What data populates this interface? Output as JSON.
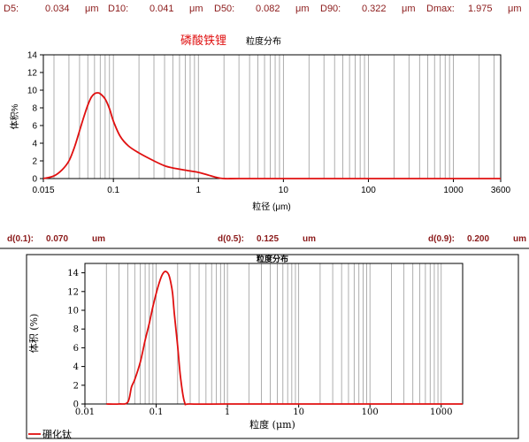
{
  "top_stats": [
    {
      "label": "D5:",
      "value": "0.034",
      "unit": "μm"
    },
    {
      "label": "D10:",
      "value": "0.041",
      "unit": "μm"
    },
    {
      "label": "D50:",
      "value": "0.082",
      "unit": "μm"
    },
    {
      "label": "D90:",
      "value": "0.322",
      "unit": "μm"
    },
    {
      "label": "Dmax:",
      "value": "1.975",
      "unit": "μm"
    }
  ],
  "middle_stats": [
    {
      "label": "d(0.1):",
      "value": "0.070",
      "unit": "um"
    },
    {
      "label": "d(0.5):",
      "value": "0.125",
      "unit": "um"
    },
    {
      "label": "d(0.9):",
      "value": "0.200",
      "unit": "um"
    }
  ],
  "colors": {
    "curve": "#e01010",
    "stats": "#8b1a1a",
    "grid": "#9a9a9a"
  },
  "chart_data": [
    {
      "type": "line",
      "title": "磷酸铁锂",
      "subtitle": "粒度分布",
      "xlabel": "粒径 (μm)",
      "ylabel": "体积%",
      "x_scale": "log",
      "xlim": [
        0.015,
        3600
      ],
      "ylim": [
        0,
        14
      ],
      "x_tick_labels": [
        "0.015",
        "0.1",
        "1",
        "10",
        "100",
        "1000",
        "3600"
      ],
      "x_ticks": [
        0.015,
        0.1,
        1,
        10,
        100,
        1000,
        3600
      ],
      "y_ticks": [
        0,
        2,
        4,
        6,
        8,
        10,
        12,
        14
      ],
      "grid": "vertical log minor lines",
      "series": [
        {
          "x": [
            0.015,
            0.02,
            0.025,
            0.03,
            0.035,
            0.04,
            0.045,
            0.05,
            0.055,
            0.06,
            0.065,
            0.07,
            0.08,
            0.09,
            0.1,
            0.12,
            0.15,
            0.2,
            0.3,
            0.4,
            0.5,
            0.7,
            1,
            1.3,
            1.6,
            1.975,
            3,
            10,
            100,
            1000,
            3600
          ],
          "values": [
            0,
            0.3,
            1.0,
            2.0,
            3.6,
            5.4,
            7.0,
            8.3,
            9.2,
            9.6,
            9.7,
            9.6,
            9.0,
            7.9,
            6.5,
            4.8,
            3.7,
            2.9,
            2.0,
            1.45,
            1.2,
            0.95,
            0.7,
            0.4,
            0.15,
            0,
            0,
            0,
            0,
            0,
            0
          ]
        }
      ]
    },
    {
      "type": "line",
      "title": "粒度分布",
      "xlabel": "粒度 (μm)",
      "ylabel": "体积 (%)",
      "x_scale": "log",
      "xlim": [
        0.01,
        2000
      ],
      "ylim": [
        0,
        15
      ],
      "x_tick_labels": [
        "0.01",
        "0.1",
        "1",
        "10",
        "100",
        "1000"
      ],
      "x_ticks": [
        0.01,
        0.1,
        1,
        10,
        100,
        1000
      ],
      "y_ticks": [
        0,
        2,
        4,
        6,
        8,
        10,
        12,
        14
      ],
      "grid": "vertical log minor lines",
      "legend": "bottom-left",
      "series": [
        {
          "name": "硼化钛",
          "x": [
            0.02,
            0.03,
            0.04,
            0.045,
            0.05,
            0.06,
            0.07,
            0.08,
            0.09,
            0.1,
            0.11,
            0.12,
            0.13,
            0.14,
            0.15,
            0.16,
            0.17,
            0.18,
            0.2,
            0.22,
            0.25,
            0.3,
            1,
            10,
            100,
            1000,
            2000
          ],
          "values": [
            0,
            0,
            0.2,
            1.8,
            2.6,
            4.5,
            6.8,
            8.6,
            10.4,
            11.8,
            12.9,
            13.7,
            14.1,
            14.1,
            13.8,
            13.0,
            11.8,
            9.6,
            6.2,
            2.8,
            0.2,
            0,
            0,
            0,
            0,
            0,
            0
          ]
        }
      ]
    }
  ]
}
